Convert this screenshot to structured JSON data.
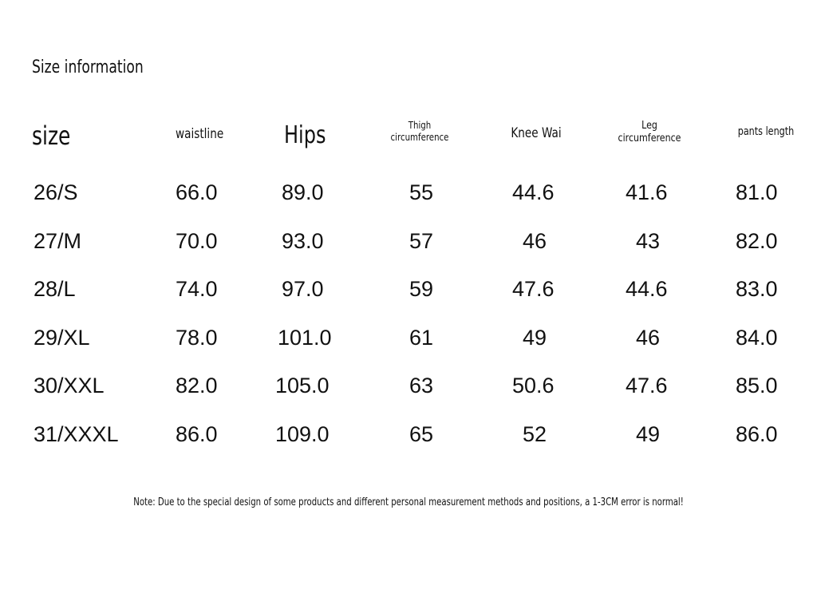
{
  "title": "Size information",
  "headers": {
    "size": "size",
    "waist": "waistline",
    "hips": "Hips",
    "thigh_1": "Thigh",
    "thigh_2": "circumference",
    "knee": "Knee Wai",
    "leg_1": "Leg",
    "leg_2": "circumference",
    "pants": "pants length"
  },
  "rows": [
    {
      "size": "26/S",
      "waist": "66.0",
      "hips": "89.0",
      "thigh": "55",
      "knee": "44.6",
      "leg": "41.6",
      "pants": "81.0"
    },
    {
      "size": "27/M",
      "waist": "70.0",
      "hips": "93.0",
      "thigh": "57",
      "knee": "46",
      "leg": "43",
      "pants": "82.0"
    },
    {
      "size": "28/L",
      "waist": "74.0",
      "hips": "97.0",
      "thigh": "59",
      "knee": "47.6",
      "leg": "44.6",
      "pants": "83.0"
    },
    {
      "size": "29/XL",
      "waist": "78.0",
      "hips": "101.0",
      "thigh": "61",
      "knee": "49",
      "leg": "46",
      "pants": "84.0"
    },
    {
      "size": "30/XXL",
      "waist": "82.0",
      "hips": "105.0",
      "thigh": "63",
      "knee": "50.6",
      "leg": "47.6",
      "pants": "85.0"
    },
    {
      "size": "31/XXXL",
      "waist": "86.0",
      "hips": "109.0",
      "thigh": "65",
      "knee": "52",
      "leg": "49",
      "pants": "86.0"
    }
  ],
  "note": "Note: Due to the special design of some products and different personal measurement methods and positions, a 1-3CM error is normal!"
}
